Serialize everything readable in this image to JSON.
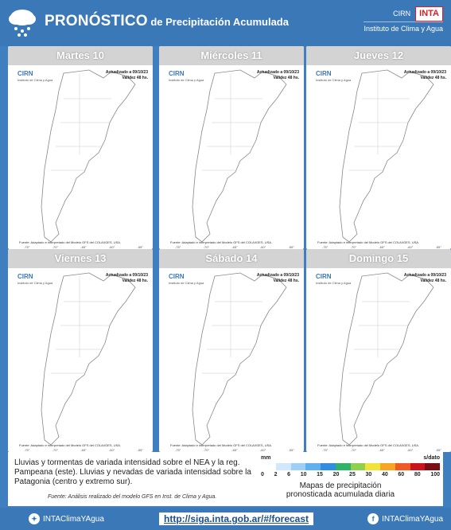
{
  "header": {
    "title_big": "PRONÓSTICO",
    "title_rest": " de Precipitación Acumulada",
    "cirn_label": "CIRN",
    "inta_label": "INTA",
    "institute": "Instituto de Clima y Agua"
  },
  "panels": [
    {
      "day": "Martes 10"
    },
    {
      "day": "Miércoles 11"
    },
    {
      "day": "Jueves 12"
    },
    {
      "day": "Viernes 13"
    },
    {
      "day": "Sábado 14"
    },
    {
      "day": "Domingo 15"
    }
  ],
  "panel_common": {
    "cirn": "CIRN",
    "cirn_sub": "Instituto de Clima y Agua",
    "updated": "Actualizado a 09/10/23",
    "validity": "Validez 48 hs.",
    "source": "Fuente: Adaptado e interpretado del Modelo GFS del COLA/IGES, USA.",
    "lons": [
      "-75°",
      "-70°",
      "-65°",
      "-60°",
      "-55°"
    ]
  },
  "footer": {
    "text": "Lluvias y tormentas de variada intensidad sobre el NEA y la reg. Pampeana (este). Lluvias y nevadas de variada intensidad sobre la Patagonia (centro y extremo sur).",
    "source": "Fuente: Análisis realizado del modelo GFS en Inst. de Clima y Agua."
  },
  "legend": {
    "unit": "mm",
    "nodata": "s/dato",
    "ticks": [
      "0",
      "2",
      "6",
      "10",
      "15",
      "20",
      "25",
      "30",
      "40",
      "60",
      "80",
      "100"
    ],
    "colors": [
      "#ffffff",
      "#cfe8fb",
      "#9ed0f5",
      "#5fb0ee",
      "#2f8ee0",
      "#2fb36b",
      "#8fd14f",
      "#f0e43a",
      "#f6a623",
      "#ee5a1f",
      "#c8161d",
      "#7a0e12"
    ],
    "caption": "Mapas de precipitación pronosticada acumulada diaria"
  },
  "bottom": {
    "twitter": "INTAClimaYAgua",
    "url": "http://siga.inta.gob.ar/#/forecast",
    "facebook": "INTAClimaYAgua"
  }
}
